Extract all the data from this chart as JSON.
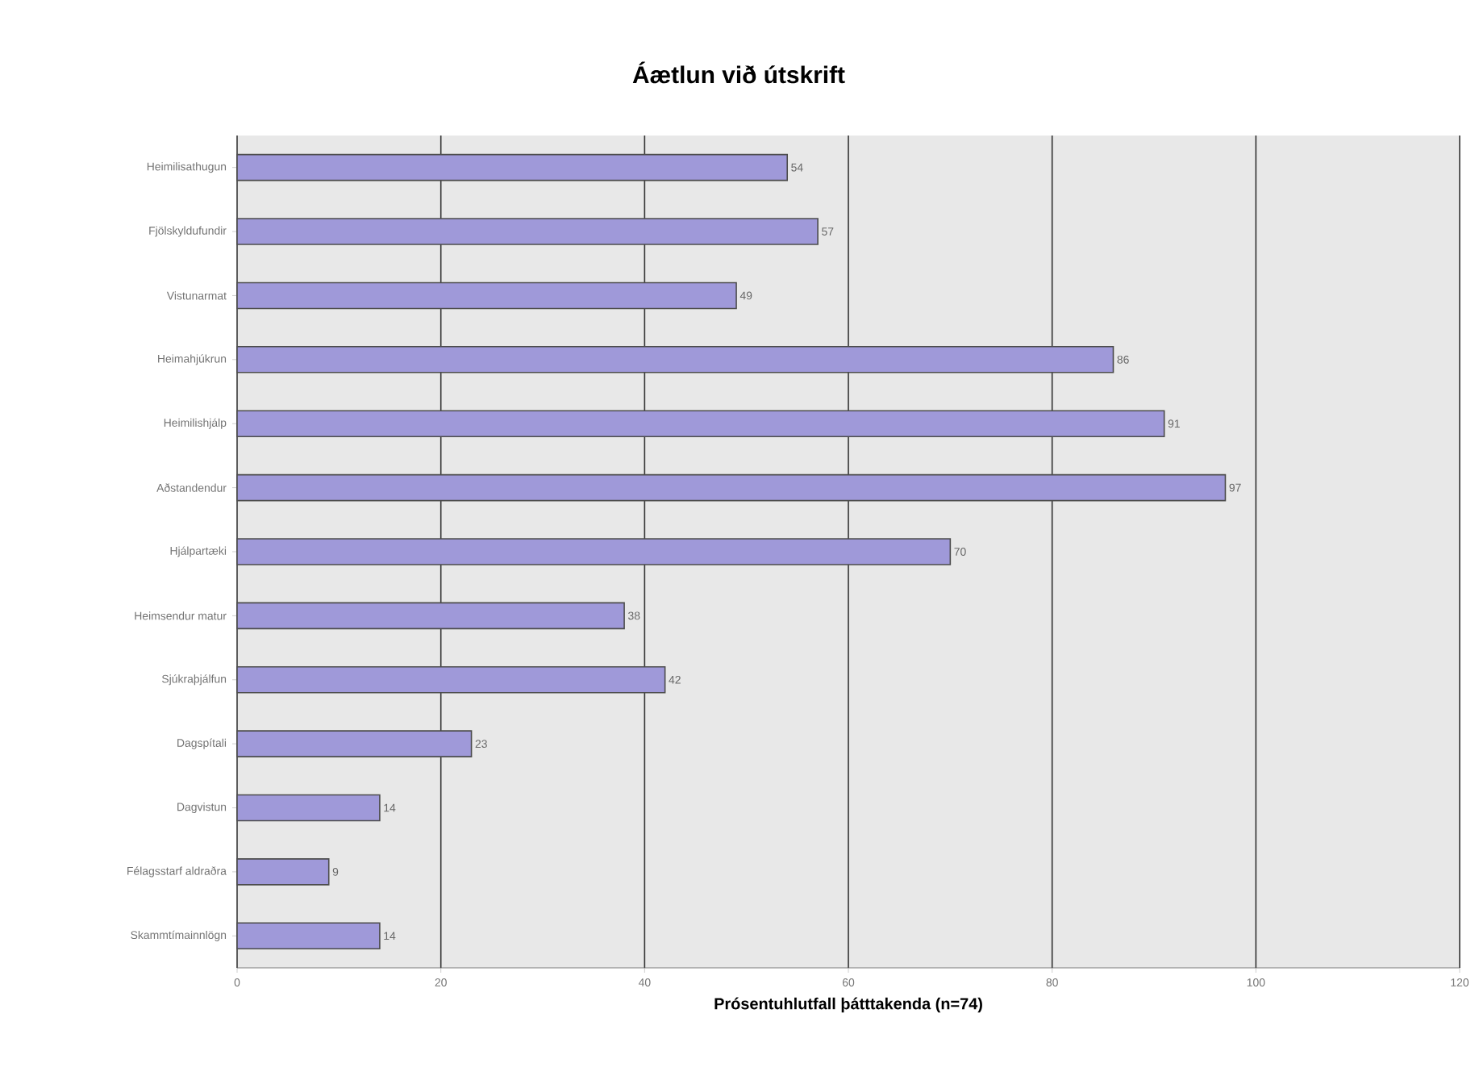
{
  "chart_data": {
    "type": "bar",
    "orientation": "horizontal",
    "title": "Áætlun við útskrift",
    "xlabel": "Prósentuhlutfall þátttakenda (n=74)",
    "categories": [
      "Heimilisathugun",
      "Fjölskyldufundir",
      "Vistunarmat",
      "Heimahjúkrun",
      "Heimilishjálp",
      "Aðstandendur",
      "Hjálpartæki",
      "Heimsendur matur",
      "Sjúkraþjálfun",
      "Dagspítali",
      "Dagvistun",
      "Félagsstarf aldraðra",
      "Skammtímainnlögn"
    ],
    "values": [
      54,
      57,
      49,
      86,
      91,
      97,
      70,
      38,
      42,
      23,
      14,
      9,
      14
    ],
    "color": "#9f99d9",
    "xlim": [
      0,
      120
    ],
    "xticks": [
      0,
      20,
      40,
      60,
      80,
      100,
      120
    ],
    "grid": "x",
    "data_labels": true
  }
}
